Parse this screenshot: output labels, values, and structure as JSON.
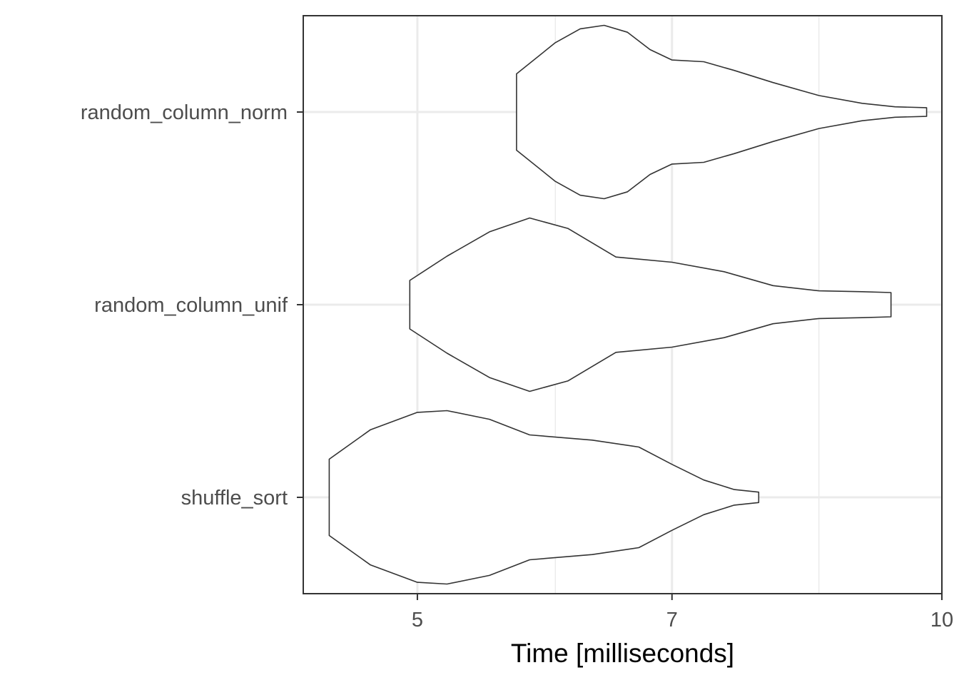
{
  "chart_data": {
    "type": "violin",
    "orientation": "horizontal",
    "xlabel": "Time [milliseconds]",
    "ylabel": "",
    "title": "",
    "x_scale": "log",
    "xlim": [
      4.3,
      10.0
    ],
    "x_ticks": [
      {
        "value": 5,
        "label": "5"
      },
      {
        "value": 7,
        "label": "7"
      },
      {
        "value": 10,
        "label": "10"
      }
    ],
    "x_minor_gridlines": [
      6,
      8.5
    ],
    "categories": [
      "random_column_norm",
      "random_column_unif",
      "shuffle_sort"
    ],
    "grid": true,
    "series": [
      {
        "category": "random_column_norm",
        "min": 5.7,
        "max": 9.8,
        "profile": [
          [
            5.7,
            0.44
          ],
          [
            6.0,
            0.8
          ],
          [
            6.2,
            0.96
          ],
          [
            6.4,
            1.0
          ],
          [
            6.6,
            0.92
          ],
          [
            6.8,
            0.72
          ],
          [
            7.0,
            0.6
          ],
          [
            7.3,
            0.58
          ],
          [
            7.6,
            0.48
          ],
          [
            8.0,
            0.34
          ],
          [
            8.5,
            0.19
          ],
          [
            9.0,
            0.1
          ],
          [
            9.4,
            0.06
          ],
          [
            9.8,
            0.05
          ]
        ]
      },
      {
        "category": "random_column_unif",
        "min": 4.95,
        "max": 9.35,
        "profile": [
          [
            4.95,
            0.28
          ],
          [
            5.2,
            0.56
          ],
          [
            5.5,
            0.84
          ],
          [
            5.8,
            1.0
          ],
          [
            6.1,
            0.88
          ],
          [
            6.5,
            0.55
          ],
          [
            7.0,
            0.49
          ],
          [
            7.5,
            0.38
          ],
          [
            8.0,
            0.22
          ],
          [
            8.5,
            0.16
          ],
          [
            9.0,
            0.15
          ],
          [
            9.35,
            0.14
          ]
        ]
      },
      {
        "category": "shuffle_sort",
        "min": 4.45,
        "max": 7.85,
        "profile": [
          [
            4.45,
            0.44
          ],
          [
            4.7,
            0.78
          ],
          [
            5.0,
            0.98
          ],
          [
            5.2,
            1.0
          ],
          [
            5.5,
            0.9
          ],
          [
            5.8,
            0.72
          ],
          [
            6.3,
            0.66
          ],
          [
            6.7,
            0.58
          ],
          [
            7.0,
            0.38
          ],
          [
            7.3,
            0.2
          ],
          [
            7.6,
            0.09
          ],
          [
            7.85,
            0.06
          ]
        ]
      }
    ],
    "colors": {
      "outline": "#333333",
      "fill": "#ffffff",
      "grid": "#ebebeb",
      "panel_border": "#333333"
    }
  }
}
